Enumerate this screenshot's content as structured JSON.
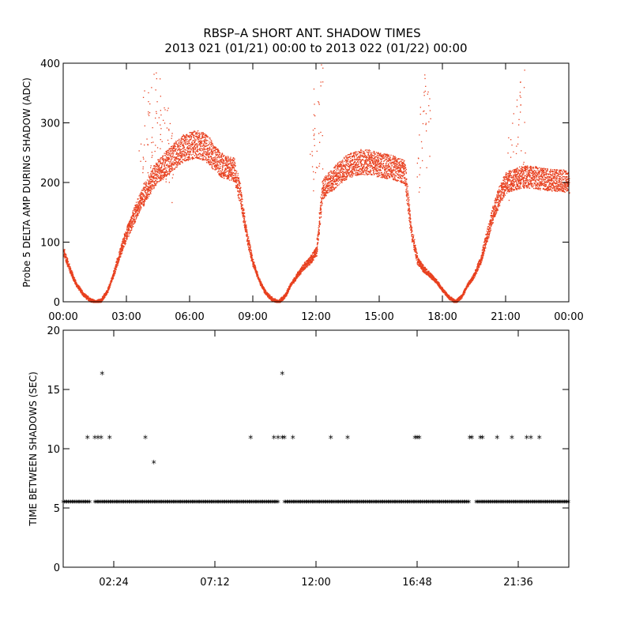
{
  "title": {
    "line1": "RBSP–A SHORT ANT. SHADOW TIMES",
    "line2": "2013 021 (01/21) 00:00 to 2013 022 (01/22) 00:00"
  },
  "colors": {
    "top_series": "#e8401f",
    "bottom_series": "#000000"
  },
  "chart_data": [
    {
      "type": "scatter",
      "panel": "top",
      "ylabel": "Probe 5 DELTA AMP DURING SHADOW (ADC)",
      "xlabel": "",
      "xlim": [
        0,
        24
      ],
      "ylim": [
        0,
        400
      ],
      "xtick_values": [
        0,
        3,
        6,
        9,
        12,
        15,
        18,
        21,
        24
      ],
      "xtick_labels": [
        "00:00",
        "03:00",
        "06:00",
        "09:00",
        "12:00",
        "15:00",
        "18:00",
        "21:00",
        "00:00"
      ],
      "ytick_values": [
        0,
        100,
        200,
        300,
        400
      ],
      "ytick_labels": [
        "0",
        "100",
        "200",
        "300",
        "400"
      ],
      "series": [
        {
          "name": "main band",
          "x": [
            0.0,
            0.3,
            0.6,
            0.9,
            1.2,
            1.5,
            1.8,
            2.1,
            2.4,
            2.7,
            3.0,
            3.3,
            3.6,
            3.9,
            4.2,
            4.5,
            4.8,
            5.1,
            5.4,
            5.7,
            6.0,
            6.3,
            6.6,
            6.9,
            7.2,
            7.5,
            7.8,
            8.1,
            8.4,
            8.7,
            9.0,
            9.3,
            9.6,
            9.9,
            10.2,
            10.5,
            10.8,
            11.1,
            11.4,
            11.7,
            12.0,
            12.3,
            12.6,
            12.9,
            13.2,
            13.5,
            13.8,
            14.1,
            14.4,
            14.7,
            15.0,
            15.3,
            15.6,
            15.9,
            16.2,
            16.5,
            16.8,
            17.1,
            17.4,
            17.7,
            18.0,
            18.3,
            18.6,
            18.9,
            19.2,
            19.5,
            19.8,
            20.1,
            20.4,
            20.7,
            21.0,
            21.3,
            21.6,
            21.9,
            22.2,
            22.5,
            22.8,
            23.1,
            23.4,
            23.7,
            24.0
          ],
          "y": [
            85,
            55,
            30,
            15,
            5,
            0,
            3,
            20,
            50,
            85,
            115,
            140,
            165,
            185,
            205,
            220,
            230,
            240,
            250,
            258,
            262,
            265,
            262,
            255,
            240,
            230,
            225,
            222,
            180,
            110,
            65,
            35,
            15,
            5,
            0,
            10,
            30,
            45,
            60,
            70,
            85,
            190,
            200,
            210,
            220,
            228,
            232,
            235,
            235,
            233,
            230,
            228,
            226,
            222,
            218,
            120,
            70,
            55,
            45,
            35,
            20,
            8,
            0,
            10,
            30,
            45,
            70,
            110,
            150,
            180,
            200,
            205,
            208,
            210,
            210,
            208,
            206,
            205,
            204,
            204,
            200
          ]
        },
        {
          "name": "spikes",
          "x": [
            3.7,
            3.9,
            4.1,
            4.3,
            4.5,
            4.7,
            4.9,
            5.1,
            11.8,
            12.0,
            12.2,
            16.9,
            17.1,
            17.3,
            21.2,
            21.4,
            21.6,
            21.8
          ],
          "y": [
            300,
            360,
            400,
            400,
            380,
            350,
            330,
            300,
            320,
            390,
            400,
            330,
            390,
            400,
            280,
            350,
            400,
            390
          ]
        }
      ]
    },
    {
      "type": "scatter",
      "panel": "bottom",
      "ylabel": "TIME BETWEEN SHADOWS (SEC)",
      "xlabel": "",
      "xlim": [
        0,
        24
      ],
      "ylim": [
        0,
        20
      ],
      "xtick_values": [
        2.4,
        7.2,
        12.0,
        16.8,
        21.6
      ],
      "xtick_labels": [
        "02:24",
        "07:12",
        "12:00",
        "16:48",
        "21:36"
      ],
      "ytick_values": [
        0,
        5,
        10,
        15,
        20
      ],
      "ytick_labels": [
        "0",
        "5",
        "10",
        "15",
        "20"
      ],
      "series": [
        {
          "name": "time between shadows",
          "marker": "*",
          "baseline_y": 5.5,
          "baseline_ranges": [
            [
              0.0,
              1.3
            ],
            [
              1.5,
              10.2
            ],
            [
              10.5,
              19.3
            ],
            [
              19.6,
              24.0
            ]
          ],
          "x": [
            1.15,
            1.5,
            1.65,
            1.8,
            2.2,
            3.9,
            8.9,
            10.0,
            10.2,
            10.4,
            10.5,
            10.9,
            12.7,
            13.5,
            16.7,
            16.8,
            16.9,
            19.3,
            19.4,
            19.8,
            19.9,
            20.6,
            21.3,
            22.0,
            22.2,
            22.6,
            1.85,
            10.4,
            4.3
          ],
          "y": [
            10.9,
            10.9,
            10.9,
            10.9,
            10.9,
            10.9,
            10.9,
            10.9,
            10.9,
            10.9,
            10.9,
            10.9,
            10.9,
            10.9,
            10.9,
            10.9,
            10.9,
            10.9,
            10.9,
            10.9,
            10.9,
            10.9,
            10.9,
            10.9,
            10.9,
            10.9,
            16.3,
            16.3,
            8.8
          ]
        }
      ]
    }
  ]
}
